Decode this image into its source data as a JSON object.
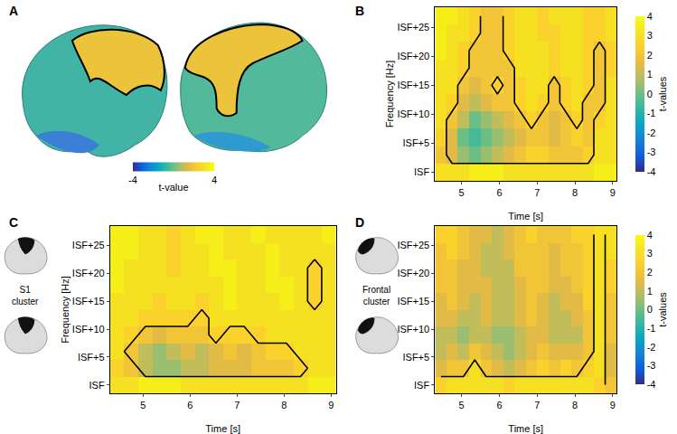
{
  "chart_data": [
    {
      "panel": "A",
      "type": "brain_map",
      "colorbar": {
        "title": "t-value",
        "range": [
          -4,
          4
        ],
        "ticks": [
          -4,
          4
        ]
      }
    },
    {
      "panel": "B",
      "type": "heatmap",
      "xlabel": "Time [s]",
      "ylabel": "Frequency [Hz]",
      "x": [
        4.45,
        4.75,
        5.05,
        5.35,
        5.65,
        5.95,
        6.25,
        6.55,
        6.85,
        7.15,
        7.45,
        7.75,
        8.05,
        8.35,
        8.65,
        8.95
      ],
      "y": [
        0,
        3,
        6,
        9,
        12,
        15,
        18,
        21,
        24,
        27
      ],
      "xlim": [
        4.3,
        9.1
      ],
      "ylim": [
        -1.5,
        28.5
      ],
      "xticks": [
        5,
        6,
        7,
        8,
        9
      ],
      "yticks": [
        {
          "value": 0,
          "label": "ISF"
        },
        {
          "value": 5,
          "label": "ISF+5"
        },
        {
          "value": 10,
          "label": "ISF+10"
        },
        {
          "value": 15,
          "label": "ISF+15"
        },
        {
          "value": 20,
          "label": "ISF+20"
        },
        {
          "value": 25,
          "label": "ISF+25"
        }
      ],
      "z": [
        [
          3,
          3,
          3,
          3.5,
          3.5,
          3.5,
          3,
          3,
          3,
          3,
          3,
          3,
          3,
          3,
          3.5,
          3.5
        ],
        [
          2,
          1.5,
          0.5,
          0,
          0.5,
          1,
          1.5,
          2,
          2.5,
          2.5,
          2,
          2,
          2,
          2.5,
          3,
          3
        ],
        [
          2.5,
          1.5,
          0,
          -0.5,
          0,
          0.5,
          1,
          1.5,
          2,
          2,
          1.5,
          2,
          2.5,
          2,
          3,
          3
        ],
        [
          3,
          2,
          1,
          0,
          0.5,
          1,
          1.5,
          2,
          2.5,
          2,
          1.5,
          2,
          2.5,
          2,
          2.5,
          3
        ],
        [
          3,
          2.5,
          1.5,
          1,
          1.5,
          2,
          2,
          2.5,
          3,
          2.5,
          2,
          2.5,
          3,
          2,
          2,
          3
        ],
        [
          3,
          3,
          2,
          1.5,
          2,
          2.5,
          2,
          2.5,
          3,
          3,
          2,
          2.5,
          3,
          2.5,
          2,
          3
        ],
        [
          3,
          3,
          2.5,
          2,
          2,
          2,
          2,
          3,
          3,
          3,
          2.5,
          3,
          3,
          2.5,
          2,
          2.5
        ],
        [
          3.5,
          3,
          2.5,
          2,
          2,
          2,
          2.5,
          3,
          3,
          3,
          2.5,
          3,
          3,
          2.5,
          2,
          2.5
        ],
        [
          3.5,
          3,
          3,
          2.5,
          2,
          2,
          2.5,
          3,
          3,
          2.5,
          2.5,
          3,
          3,
          2.5,
          2.5,
          3
        ],
        [
          3.5,
          3.5,
          3,
          2.5,
          2,
          2,
          2.5,
          3,
          3,
          2.5,
          3,
          3,
          3,
          2.5,
          2.5,
          3
        ]
      ],
      "cluster_mask": [
        [
          1,
          1,
          1,
          1,
          1,
          1,
          1,
          1,
          1,
          1,
          1,
          1,
          1,
          1,
          1,
          1
        ],
        [
          1,
          0,
          0,
          0,
          0,
          0,
          0,
          0,
          0,
          0,
          0,
          0,
          0,
          0,
          1,
          1
        ],
        [
          1,
          0,
          0,
          0,
          0,
          0,
          0,
          0,
          0,
          0,
          0,
          0,
          0,
          0,
          1,
          1
        ],
        [
          1,
          0,
          0,
          0,
          0,
          0,
          0,
          0,
          1,
          0,
          0,
          0,
          1,
          0,
          1,
          1
        ],
        [
          1,
          1,
          0,
          0,
          0,
          0,
          0,
          1,
          1,
          1,
          0,
          1,
          1,
          0,
          0,
          1
        ],
        [
          1,
          1,
          0,
          0,
          0,
          1,
          0,
          1,
          1,
          1,
          0,
          1,
          1,
          1,
          0,
          1
        ],
        [
          1,
          1,
          1,
          0,
          0,
          0,
          0,
          1,
          1,
          1,
          1,
          1,
          1,
          1,
          0,
          1
        ],
        [
          1,
          1,
          1,
          0,
          0,
          0,
          1,
          1,
          1,
          1,
          1,
          1,
          1,
          1,
          0,
          1
        ],
        [
          1,
          1,
          1,
          1,
          0,
          0,
          1,
          1,
          1,
          1,
          1,
          1,
          1,
          1,
          1,
          1
        ],
        [
          1,
          1,
          1,
          1,
          0,
          0,
          1,
          1,
          1,
          1,
          1,
          1,
          1,
          1,
          1,
          1
        ]
      ],
      "colorbar": {
        "title": "t-values",
        "range": [
          -4,
          4
        ],
        "ticks": [
          -4,
          -3,
          -2,
          -1,
          0,
          1,
          2,
          3,
          4
        ]
      }
    },
    {
      "panel": "C",
      "type": "heatmap",
      "xlabel": "Time [s]",
      "ylabel": "Frequency [Hz]",
      "inset_label": "S1 cluster",
      "x": [
        4.45,
        4.75,
        5.05,
        5.35,
        5.65,
        5.95,
        6.25,
        6.55,
        6.85,
        7.15,
        7.45,
        7.75,
        8.05,
        8.35,
        8.65,
        8.95
      ],
      "y": [
        0,
        3,
        6,
        9,
        12,
        15,
        18,
        21,
        24,
        27
      ],
      "xlim": [
        4.3,
        9.1
      ],
      "ylim": [
        -1.5,
        28.5
      ],
      "xticks": [
        5,
        6,
        7,
        8,
        9
      ],
      "yticks": [
        {
          "value": 0,
          "label": "ISF"
        },
        {
          "value": 5,
          "label": "ISF+5"
        },
        {
          "value": 10,
          "label": "ISF+10"
        },
        {
          "value": 15,
          "label": "ISF+15"
        },
        {
          "value": 20,
          "label": "ISF+20"
        },
        {
          "value": 25,
          "label": "ISF+25"
        }
      ],
      "z": [
        [
          3,
          3,
          3.5,
          3.5,
          3.5,
          3,
          3,
          3,
          3,
          3,
          3,
          3,
          3,
          3,
          3.5,
          3.5
        ],
        [
          2.5,
          2,
          1,
          0.5,
          0.5,
          1,
          1,
          1.5,
          1.5,
          1.5,
          2,
          2,
          2,
          2.5,
          3,
          3
        ],
        [
          3,
          2,
          1,
          0.5,
          1,
          1.5,
          1,
          1.5,
          2,
          1.5,
          2,
          2.5,
          2.5,
          3,
          3,
          3
        ],
        [
          3,
          2.5,
          2,
          1.5,
          2,
          2,
          2,
          2.5,
          2.5,
          2.5,
          2.5,
          3,
          3,
          3,
          3,
          3
        ],
        [
          3,
          3,
          2.5,
          2.5,
          2.5,
          2.5,
          2.5,
          3,
          3,
          3,
          3,
          3,
          3,
          3,
          3,
          3
        ],
        [
          3,
          3,
          3,
          2.5,
          3,
          3,
          2.5,
          3,
          3.5,
          3,
          3,
          3,
          3.5,
          3,
          2.5,
          3
        ],
        [
          3.5,
          3,
          3,
          3,
          3,
          3,
          3,
          3,
          3.5,
          3,
          3,
          3.5,
          3.5,
          3,
          2.5,
          3
        ],
        [
          3.5,
          3,
          3,
          3,
          2.5,
          3,
          3,
          3.5,
          3.5,
          3,
          3,
          3.5,
          3,
          3,
          2.5,
          3
        ],
        [
          3.5,
          3.5,
          3,
          3,
          2.5,
          3,
          3,
          3.5,
          3,
          3,
          3,
          3.5,
          3,
          3,
          3,
          3
        ],
        [
          3.5,
          3.5,
          3,
          3,
          2.5,
          3,
          3.5,
          3.5,
          3,
          3,
          3.5,
          3,
          3,
          3,
          3,
          3.5
        ]
      ],
      "cluster_mask": [
        [
          1,
          1,
          1,
          1,
          1,
          1,
          1,
          1,
          1,
          1,
          1,
          1,
          1,
          1,
          1,
          1
        ],
        [
          1,
          1,
          0,
          0,
          0,
          0,
          0,
          0,
          0,
          0,
          0,
          0,
          0,
          0,
          1,
          1
        ],
        [
          1,
          0,
          0,
          0,
          0,
          0,
          0,
          0,
          0,
          0,
          0,
          0,
          0,
          1,
          1,
          1
        ],
        [
          1,
          1,
          0,
          0,
          0,
          0,
          0,
          1,
          0,
          0,
          1,
          1,
          1,
          1,
          1,
          1
        ],
        [
          1,
          1,
          1,
          1,
          1,
          1,
          0,
          1,
          1,
          1,
          1,
          1,
          1,
          1,
          1,
          1
        ],
        [
          1,
          1,
          1,
          1,
          1,
          1,
          1,
          1,
          1,
          1,
          1,
          1,
          1,
          1,
          0,
          1
        ],
        [
          1,
          1,
          1,
          1,
          1,
          1,
          1,
          1,
          1,
          1,
          1,
          1,
          1,
          1,
          0,
          1
        ],
        [
          1,
          1,
          1,
          1,
          1,
          1,
          1,
          1,
          1,
          1,
          1,
          1,
          1,
          1,
          0,
          1
        ],
        [
          1,
          1,
          1,
          1,
          1,
          1,
          1,
          1,
          1,
          1,
          1,
          1,
          1,
          1,
          1,
          1
        ],
        [
          1,
          1,
          1,
          1,
          1,
          1,
          1,
          1,
          1,
          1,
          1,
          1,
          1,
          1,
          1,
          1
        ]
      ]
    },
    {
      "panel": "D",
      "type": "heatmap",
      "xlabel": "Time [s]",
      "inset_label": "Frontal cluster",
      "x": [
        4.45,
        4.75,
        5.05,
        5.35,
        5.65,
        5.95,
        6.25,
        6.55,
        6.85,
        7.15,
        7.45,
        7.75,
        8.05,
        8.35,
        8.65,
        8.95
      ],
      "y": [
        0,
        3,
        6,
        9,
        12,
        15,
        18,
        21,
        24,
        27
      ],
      "xlim": [
        4.3,
        9.1
      ],
      "ylim": [
        -1.5,
        28.5
      ],
      "xticks": [
        5,
        6,
        7,
        8,
        9
      ],
      "yticks": [
        {
          "value": 0,
          "label": "ISF"
        },
        {
          "value": 5,
          "label": "ISF+5"
        },
        {
          "value": 10,
          "label": "ISF+10"
        },
        {
          "value": 15,
          "label": "ISF+15"
        },
        {
          "value": 20,
          "label": "ISF+20"
        },
        {
          "value": 25,
          "label": "ISF+25"
        }
      ],
      "z": [
        [
          2.5,
          3,
          3,
          3,
          3,
          3,
          2.5,
          3,
          3,
          3,
          3,
          3,
          3,
          3,
          2.5,
          2
        ],
        [
          1.5,
          2,
          2,
          3,
          2,
          1.5,
          1,
          1.5,
          2,
          2.5,
          2,
          2.5,
          2,
          2.5,
          3,
          1.5
        ],
        [
          1,
          1.5,
          1,
          2,
          1.5,
          1,
          0.5,
          1,
          1.5,
          2,
          1.5,
          1.5,
          1.5,
          2,
          3,
          1.5
        ],
        [
          1,
          1,
          0.5,
          1,
          1,
          0.5,
          0.5,
          1,
          1.5,
          1.5,
          1,
          1,
          1,
          2,
          3,
          2
        ],
        [
          1.5,
          1.5,
          1,
          1,
          1.5,
          1,
          1,
          1.5,
          2,
          1.5,
          1,
          1,
          1.5,
          2,
          3,
          2
        ],
        [
          1.5,
          2,
          1.5,
          1,
          1.5,
          1,
          1,
          1.5,
          2,
          1.5,
          1,
          1.5,
          1.5,
          2.5,
          3,
          2
        ],
        [
          2,
          2,
          1.5,
          1.5,
          1.5,
          1,
          1,
          1.5,
          2,
          2,
          1.5,
          1.5,
          2,
          2.5,
          3,
          2.5
        ],
        [
          2,
          2,
          1.5,
          1.5,
          1,
          1,
          1,
          2,
          2,
          2,
          1.5,
          2,
          2,
          2.5,
          3,
          2.5
        ],
        [
          2,
          2.5,
          2,
          1.5,
          1,
          1,
          1.5,
          2,
          2,
          2,
          1.5,
          2,
          2,
          2.5,
          3,
          3
        ],
        [
          2.5,
          2.5,
          2,
          1.5,
          1.5,
          1,
          1.5,
          2,
          2.5,
          2,
          2,
          2,
          2.5,
          2.5,
          3,
          3
        ]
      ],
      "cluster_mask": [
        [
          1,
          1,
          1,
          1,
          1,
          1,
          1,
          1,
          1,
          1,
          1,
          1,
          1,
          1,
          1,
          0
        ],
        [
          0,
          0,
          0,
          1,
          0,
          0,
          0,
          0,
          0,
          0,
          0,
          0,
          0,
          1,
          1,
          0
        ],
        [
          0,
          0,
          0,
          0,
          0,
          0,
          0,
          0,
          0,
          0,
          0,
          0,
          0,
          0,
          1,
          0
        ],
        [
          0,
          0,
          0,
          0,
          0,
          0,
          0,
          0,
          0,
          0,
          0,
          0,
          0,
          0,
          1,
          0
        ],
        [
          0,
          0,
          0,
          0,
          0,
          0,
          0,
          0,
          0,
          0,
          0,
          0,
          0,
          0,
          1,
          0
        ],
        [
          0,
          0,
          0,
          0,
          0,
          0,
          0,
          0,
          0,
          0,
          0,
          0,
          0,
          0,
          1,
          0
        ],
        [
          0,
          0,
          0,
          0,
          0,
          0,
          0,
          0,
          0,
          0,
          0,
          0,
          0,
          0,
          1,
          0
        ],
        [
          0,
          0,
          0,
          0,
          0,
          0,
          0,
          0,
          0,
          0,
          0,
          0,
          0,
          0,
          1,
          0
        ],
        [
          0,
          0,
          0,
          0,
          0,
          0,
          0,
          0,
          0,
          0,
          0,
          0,
          0,
          0,
          1,
          0
        ],
        [
          0,
          0,
          0,
          0,
          0,
          0,
          0,
          0,
          0,
          0,
          0,
          0,
          0,
          0,
          1,
          0
        ]
      ],
      "colorbar": {
        "title": "t-values",
        "range": [
          -4,
          4
        ],
        "ticks": [
          -4,
          -3,
          -2,
          -1,
          0,
          1,
          2,
          3,
          4
        ]
      }
    }
  ]
}
